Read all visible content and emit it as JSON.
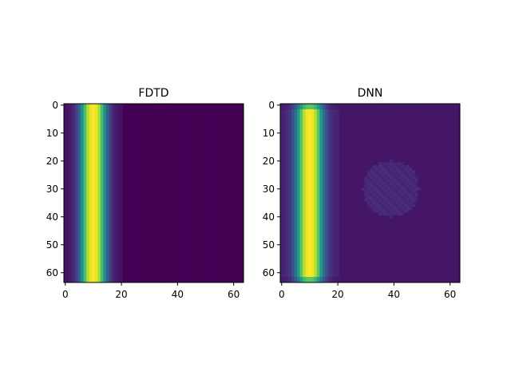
{
  "chart_data": [
    {
      "type": "heatmap",
      "title": "FDTD",
      "colormap": "viridis",
      "grid_size": [
        64,
        64
      ],
      "xlim": [
        0,
        63
      ],
      "ylim": [
        63,
        0
      ],
      "xticks": [
        0,
        20,
        40,
        60
      ],
      "yticks": [
        0,
        10,
        20,
        30,
        40,
        50,
        60
      ],
      "column_profile": [
        0.05,
        0.06,
        0.08,
        0.12,
        0.2,
        0.32,
        0.5,
        0.7,
        0.88,
        0.97,
        1.0,
        0.97,
        0.88,
        0.7,
        0.5,
        0.32,
        0.2,
        0.12,
        0.08,
        0.06,
        0.05
      ],
      "background": 0.0
    },
    {
      "type": "heatmap",
      "title": "DNN",
      "colormap": "viridis",
      "grid_size": [
        64,
        64
      ],
      "xlim": [
        0,
        63
      ],
      "ylim": [
        63,
        0
      ],
      "xticks": [
        0,
        20,
        40,
        60
      ],
      "yticks": [
        0,
        10,
        20,
        30,
        40,
        50,
        60
      ],
      "column_profile": [
        0.1,
        0.11,
        0.13,
        0.17,
        0.25,
        0.38,
        0.55,
        0.74,
        0.9,
        0.98,
        1.0,
        0.98,
        0.9,
        0.74,
        0.55,
        0.38,
        0.25,
        0.17,
        0.13,
        0.11,
        0.1
      ],
      "background": 0.06,
      "artifact": {
        "center": [
          39,
          30
        ],
        "radius": 10,
        "value": 0.1
      }
    }
  ]
}
